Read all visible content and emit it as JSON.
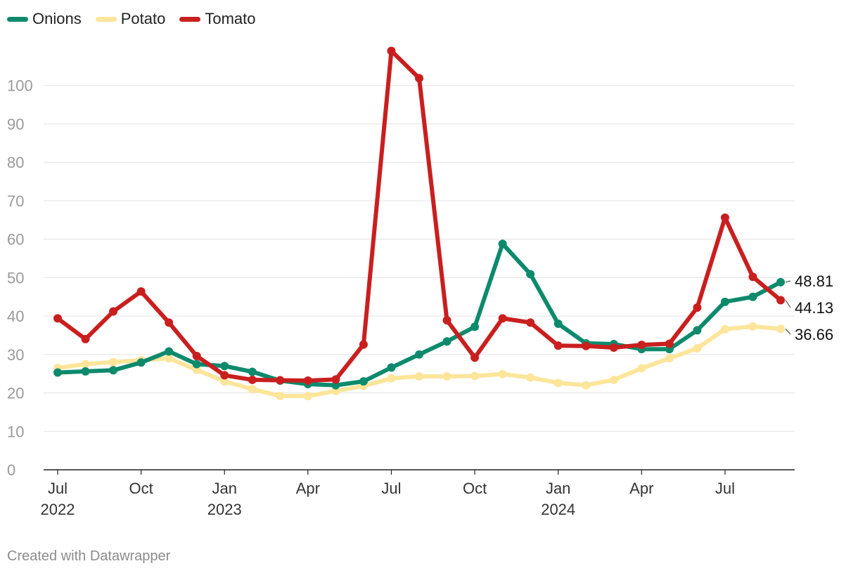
{
  "chart_data": {
    "type": "line",
    "title": "",
    "xlabel": "",
    "ylabel": "",
    "ylim": [
      0,
      110
    ],
    "y_ticks": [
      0,
      10,
      20,
      30,
      40,
      50,
      60,
      70,
      80,
      90,
      100
    ],
    "grid": true,
    "legend_position": "top-left",
    "x_ticks": [
      {
        "index": 0,
        "label": "Jul",
        "year": "2022"
      },
      {
        "index": 3,
        "label": "Oct",
        "year": ""
      },
      {
        "index": 6,
        "label": "Jan",
        "year": "2023"
      },
      {
        "index": 9,
        "label": "Apr",
        "year": ""
      },
      {
        "index": 12,
        "label": "Jul",
        "year": ""
      },
      {
        "index": 15,
        "label": "Oct",
        "year": ""
      },
      {
        "index": 18,
        "label": "Jan",
        "year": "2024"
      },
      {
        "index": 21,
        "label": "Apr",
        "year": ""
      },
      {
        "index": 24,
        "label": "Jul",
        "year": ""
      }
    ],
    "categories": [
      "Jul 2022",
      "Aug 2022",
      "Sep 2022",
      "Oct 2022",
      "Nov 2022",
      "Dec 2022",
      "Jan 2023",
      "Feb 2023",
      "Mar 2023",
      "Apr 2023",
      "May 2023",
      "Jun 2023",
      "Jul 2023",
      "Aug 2023",
      "Sep 2023",
      "Oct 2023",
      "Nov 2023",
      "Dec 2023",
      "Jan 2024",
      "Feb 2024",
      "Mar 2024",
      "Apr 2024",
      "May 2024",
      "Jun 2024",
      "Jul 2024",
      "Aug 2024",
      "Sep 2024"
    ],
    "series": [
      {
        "name": "Potato",
        "color": "#fde59a",
        "end_label": "36.66",
        "values": [
          26.5,
          27.5,
          28.0,
          28.5,
          29.0,
          26.0,
          23.0,
          21.0,
          19.2,
          19.2,
          20.5,
          21.8,
          23.8,
          24.3,
          24.3,
          24.4,
          24.9,
          24.0,
          22.6,
          22.0,
          23.4,
          26.4,
          29.0,
          31.6,
          36.6,
          37.3,
          36.66
        ]
      },
      {
        "name": "Onions",
        "color": "#0d8a6c",
        "end_label": "48.81",
        "values": [
          25.3,
          25.6,
          25.9,
          27.9,
          30.8,
          27.5,
          27.0,
          25.5,
          23.2,
          22.3,
          22.0,
          23.0,
          26.6,
          30.0,
          33.4,
          37.2,
          58.8,
          50.9,
          38.0,
          32.9,
          32.7,
          31.4,
          31.4,
          36.3,
          43.7,
          45.0,
          48.81
        ]
      },
      {
        "name": "Tomato",
        "color": "#c91f1f",
        "end_label": "44.13",
        "values": [
          39.4,
          34.0,
          41.2,
          46.4,
          38.3,
          29.6,
          24.6,
          23.4,
          23.3,
          23.2,
          23.5,
          32.6,
          109.0,
          101.9,
          38.9,
          29.2,
          39.4,
          38.3,
          32.3,
          32.2,
          31.8,
          32.5,
          32.8,
          42.2,
          65.6,
          50.2,
          44.13
        ]
      }
    ],
    "legend_order": [
      "Onions",
      "Potato",
      "Tomato"
    ]
  },
  "footer": {
    "credit": "Created with Datawrapper"
  }
}
